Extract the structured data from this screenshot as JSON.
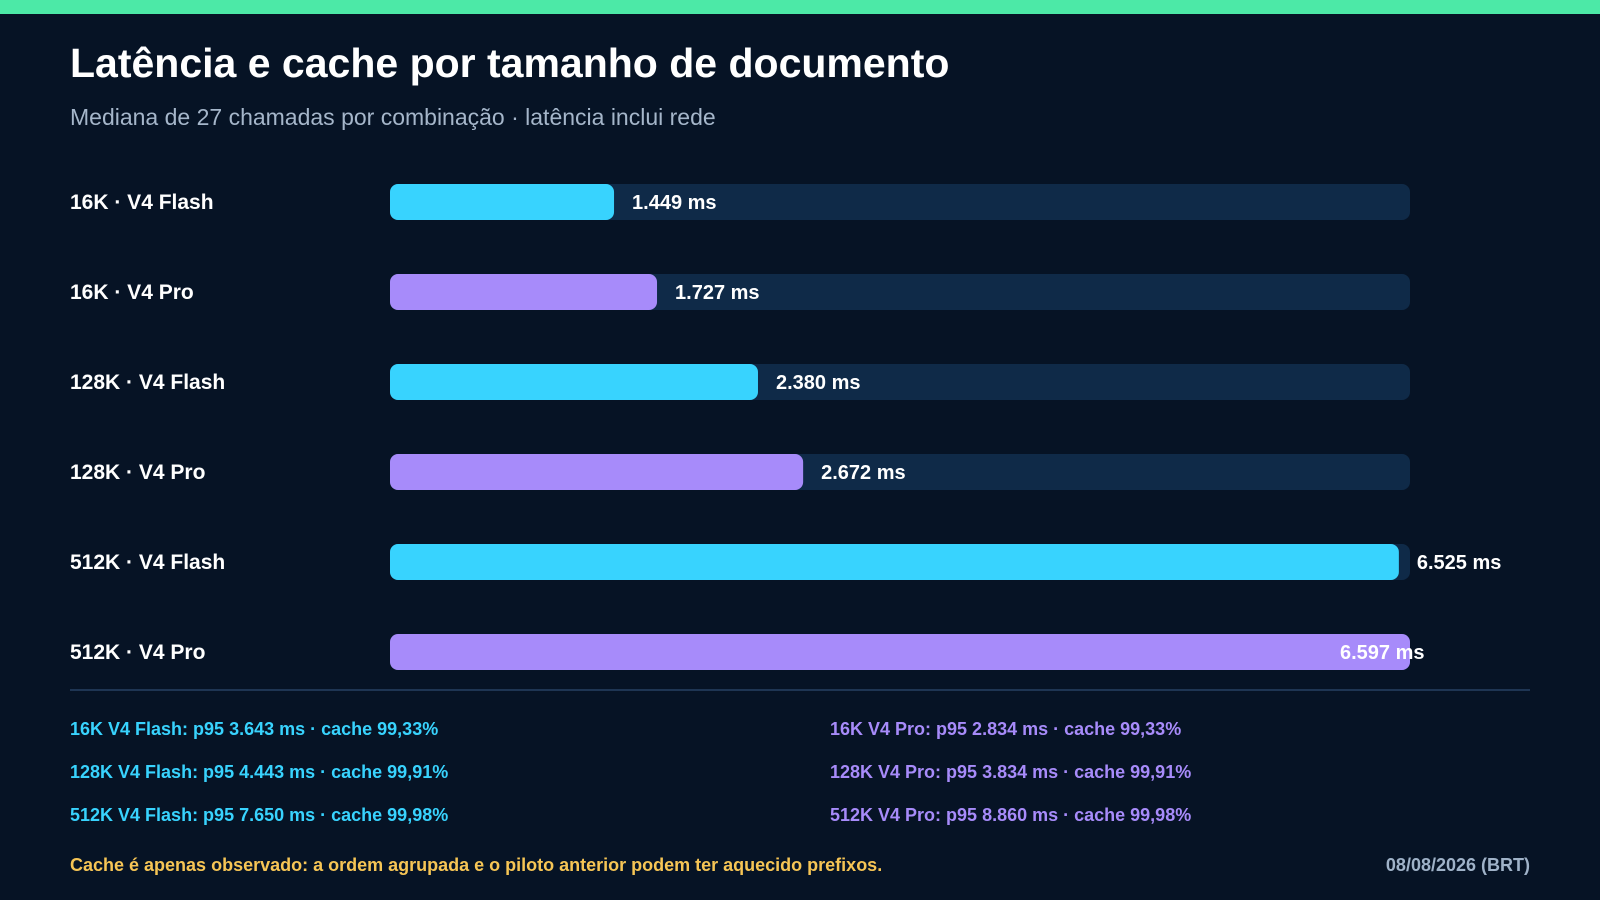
{
  "header": {
    "title": "Latência e cache por tamanho de documento",
    "subtitle": "Mediana de 27 chamadas por combinação · latência inclui rede"
  },
  "colors": {
    "accent_bar": "#4ce9a7",
    "flash": "#38d3fe",
    "pro": "#a78bfa",
    "track": "#0f2a48",
    "note": "#f6c555"
  },
  "chart_data": {
    "type": "bar",
    "orientation": "horizontal",
    "unit": "ms",
    "xlim": [
      0,
      6597
    ],
    "categories": [
      "16K · V4 Flash",
      "16K · V4 Pro",
      "128K · V4 Flash",
      "128K · V4 Pro",
      "512K · V4 Flash",
      "512K · V4 Pro"
    ],
    "values": [
      1449,
      1727,
      2380,
      2672,
      6525,
      6597
    ],
    "value_labels": [
      "1.449 ms",
      "1.727 ms",
      "2.380 ms",
      "2.672 ms",
      "6.525 ms",
      "6.597 ms"
    ],
    "variants": [
      "flash",
      "pro",
      "flash",
      "pro",
      "flash",
      "pro"
    ],
    "grid": false,
    "legend": "none"
  },
  "stats": {
    "flash": [
      "16K V4 Flash: p95 3.643 ms · cache 99,33%",
      "128K V4 Flash: p95 4.443 ms · cache 99,91%",
      "512K V4 Flash: p95 7.650 ms · cache 99,98%"
    ],
    "pro": [
      "16K V4 Pro: p95 2.834 ms · cache 99,33%",
      "128K V4 Pro: p95 3.834 ms · cache 99,91%",
      "512K V4 Pro: p95 8.860 ms · cache 99,98%"
    ]
  },
  "footer": {
    "note": "Cache é apenas observado: a ordem agrupada e o piloto anterior podem ter aquecido prefixos.",
    "date": "08/08/2026 (BRT)"
  }
}
